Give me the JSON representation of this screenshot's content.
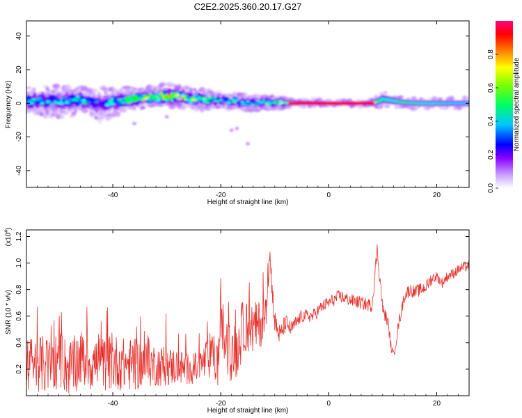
{
  "title": "C2E2.2025.360.20.17.G27",
  "colors": {
    "snr_line": "#e8302c",
    "axis": "#000000",
    "background": "#ffffff",
    "spec_bg": "#ffffff"
  },
  "chart_data": [
    {
      "type": "heatmap",
      "name": "spectrogram",
      "xlabel": "Height of straight line (km)",
      "ylabel": "Frequency (Hz)",
      "xlim": [
        -56,
        26
      ],
      "ylim": [
        -50,
        49
      ],
      "x_ticks": [
        -40,
        -20,
        0,
        20
      ],
      "x_tick_labels": [
        "-40",
        "-20",
        "0",
        "20"
      ],
      "y_ticks": [
        -40,
        -20,
        0,
        20,
        40
      ],
      "y_tick_labels": [
        "-40",
        "-20",
        "0",
        "20",
        "40"
      ],
      "colorbar": {
        "label": "Normalized spectral amplitude",
        "range": [
          0,
          1
        ],
        "ticks": [
          0,
          0.2,
          0.4,
          0.6,
          0.8
        ],
        "tick_labels": [
          "0.0",
          "0.2",
          "0.4",
          "0.6",
          "0.8"
        ],
        "colormap": [
          "#ffffff",
          "#c8a0ff",
          "#8a00ff",
          "#0000ff",
          "#00ffff",
          "#00ff00",
          "#ffff00",
          "#ff8000",
          "#ff0000",
          "#ff0080"
        ]
      },
      "ridge": {
        "description_values": "center frequency (Hz) vs height (km) and spread",
        "x": [
          -56,
          -52,
          -48,
          -46,
          -44,
          -42,
          -40,
          -38,
          -35,
          -32,
          -29,
          -26,
          -23,
          -20,
          -17,
          -14,
          -11,
          -8,
          -5,
          0,
          5,
          8,
          9,
          10,
          12,
          14,
          17,
          20,
          23,
          26
        ],
        "center": [
          1.5,
          1.0,
          1.2,
          2.0,
          1.0,
          -1.0,
          0.5,
          2.0,
          3.0,
          4.0,
          4.5,
          3.0,
          2.0,
          2.0,
          1.0,
          0.0,
          0.5,
          0.3,
          0.2,
          0.0,
          0.0,
          0.0,
          1.0,
          2.5,
          1.5,
          0.5,
          0.0,
          0.0,
          0.0,
          0.0
        ],
        "spread": [
          5,
          6,
          6,
          5,
          5,
          7,
          5,
          5,
          4,
          4,
          5,
          4,
          4,
          3,
          3,
          3,
          2.5,
          2,
          1.5,
          1.2,
          1.2,
          1.5,
          2.5,
          3,
          2.5,
          2,
          2,
          2,
          2,
          2
        ],
        "peak": [
          0.45,
          0.4,
          0.4,
          0.5,
          0.4,
          0.3,
          0.45,
          0.5,
          0.55,
          0.6,
          0.65,
          0.55,
          0.5,
          0.45,
          0.45,
          0.45,
          0.5,
          0.6,
          0.75,
          0.9,
          0.9,
          0.8,
          0.55,
          0.5,
          0.5,
          0.55,
          0.5,
          0.5,
          0.45,
          0.45
        ]
      }
    },
    {
      "type": "line",
      "name": "snr",
      "xlabel": "Height of straight line (km)",
      "ylabel": "SNR (10 * v/v)",
      "y_multiplier": "(x10",
      "y_multiplier_exp": "4",
      "y_multiplier_close": ")",
      "xlim": [
        -56,
        26
      ],
      "ylim": [
        0,
        1.25
      ],
      "x_ticks": [
        -40,
        -20,
        0,
        20
      ],
      "x_tick_labels": [
        "-40",
        "-20",
        "0",
        "20"
      ],
      "y_ticks": [
        0.2,
        0.4,
        0.6,
        0.8,
        1.0,
        1.2
      ],
      "y_tick_labels": [
        "0.2",
        "0.4",
        "0.6",
        "0.8",
        "1.0",
        "1.2"
      ],
      "series": [
        {
          "name": "SNR",
          "x": [
            -56,
            -54,
            -52,
            -50,
            -48,
            -46,
            -44,
            -42,
            -40,
            -38,
            -36,
            -34,
            -32,
            -30,
            -28,
            -26,
            -24,
            -22,
            -20.5,
            -20,
            -19,
            -18,
            -17,
            -15.5,
            -14,
            -12.5,
            -11.5,
            -11,
            -10,
            -9,
            -8,
            -7,
            -5,
            -3,
            -1,
            0,
            2,
            4,
            6,
            8,
            9,
            10,
            11,
            11.5,
            12,
            13,
            14,
            15,
            16,
            17,
            18,
            19,
            20,
            21,
            22,
            23,
            24,
            25,
            26
          ],
          "base": [
            0.22,
            0.25,
            0.22,
            0.28,
            0.2,
            0.28,
            0.25,
            0.24,
            0.25,
            0.24,
            0.23,
            0.24,
            0.23,
            0.22,
            0.22,
            0.2,
            0.21,
            0.3,
            0.25,
            0.6,
            0.35,
            0.3,
            0.35,
            0.55,
            0.5,
            0.55,
            0.6,
            1.1,
            0.55,
            0.45,
            0.55,
            0.5,
            0.6,
            0.6,
            0.68,
            0.7,
            0.75,
            0.72,
            0.7,
            0.68,
            1.1,
            0.65,
            0.55,
            0.38,
            0.3,
            0.55,
            0.75,
            0.8,
            0.78,
            0.8,
            0.82,
            0.88,
            0.9,
            0.85,
            0.9,
            0.92,
            0.95,
            0.97,
            0.98
          ],
          "amp": [
            0.2,
            0.22,
            0.22,
            0.22,
            0.22,
            0.22,
            0.22,
            0.2,
            0.22,
            0.2,
            0.2,
            0.18,
            0.16,
            0.15,
            0.14,
            0.12,
            0.12,
            0.18,
            0.2,
            0.2,
            0.22,
            0.2,
            0.22,
            0.22,
            0.2,
            0.18,
            0.16,
            0.1,
            0.1,
            0.08,
            0.07,
            0.06,
            0.05,
            0.05,
            0.05,
            0.05,
            0.05,
            0.05,
            0.05,
            0.05,
            0.08,
            0.05,
            0.05,
            0.04,
            0.04,
            0.05,
            0.05,
            0.05,
            0.05,
            0.05,
            0.05,
            0.05,
            0.04,
            0.04,
            0.04,
            0.04,
            0.04,
            0.04,
            0.04
          ]
        }
      ]
    }
  ]
}
